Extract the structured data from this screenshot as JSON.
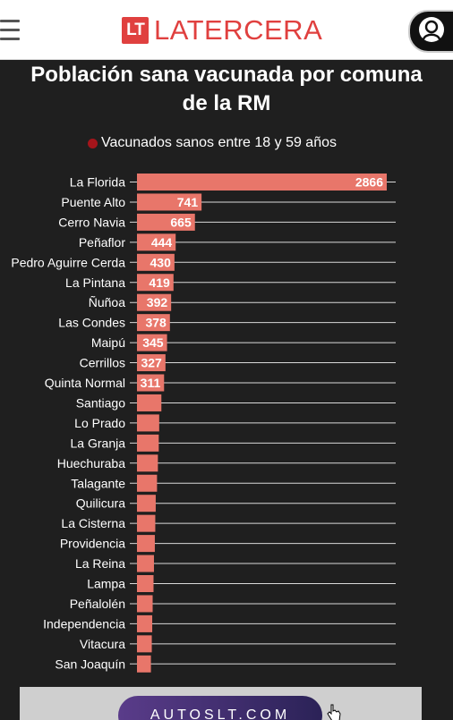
{
  "header": {
    "logo_mark": "LT",
    "logo_text": "LATERCERA",
    "menu_icon": "hamburger-menu-icon",
    "user_icon": "user-account-icon"
  },
  "ad": {
    "text": "AUTOSLT.COM"
  },
  "chart_data": {
    "type": "bar",
    "orientation": "horizontal",
    "title": "Población sana vacunada por comuna de la RM",
    "title_lines": [
      "Población sana vacunada por comuna",
      "de la RM"
    ],
    "legend": [
      "Vacunados sanos entre 18 y 59 años"
    ],
    "bar_color": "#e8766a",
    "legend_color": "#a4151b",
    "categories": [
      "La Florida",
      "Puente Alto",
      "Cerro Navia",
      "Peñaflor",
      "Pedro Aguirre Cerda",
      "La Pintana",
      "Ñuñoa",
      "Las Condes",
      "Maipú",
      "Cerrillos",
      "Quinta Normal",
      "Santiago",
      "Lo Prado",
      "La Granja",
      "Huechuraba",
      "Talagante",
      "Quilicura",
      "La Cisterna",
      "Providencia",
      "La Reina",
      "Lampa",
      "Peñalolén",
      "Independencia",
      "Vitacura",
      "San Joaquín"
    ],
    "values": [
      2866,
      741,
      665,
      444,
      430,
      419,
      392,
      378,
      345,
      327,
      311,
      280,
      255,
      250,
      240,
      230,
      215,
      210,
      205,
      195,
      190,
      180,
      175,
      170,
      160
    ],
    "data_labels": [
      "2866",
      "741",
      "665",
      "444",
      "430",
      "419",
      "392",
      "378",
      "345",
      "327",
      "311",
      "",
      "",
      "",
      "",
      "",
      "",
      "",
      "",
      "",
      "",
      "",
      "",
      "",
      ""
    ],
    "xlim": [
      0,
      2866
    ],
    "grid": true
  }
}
